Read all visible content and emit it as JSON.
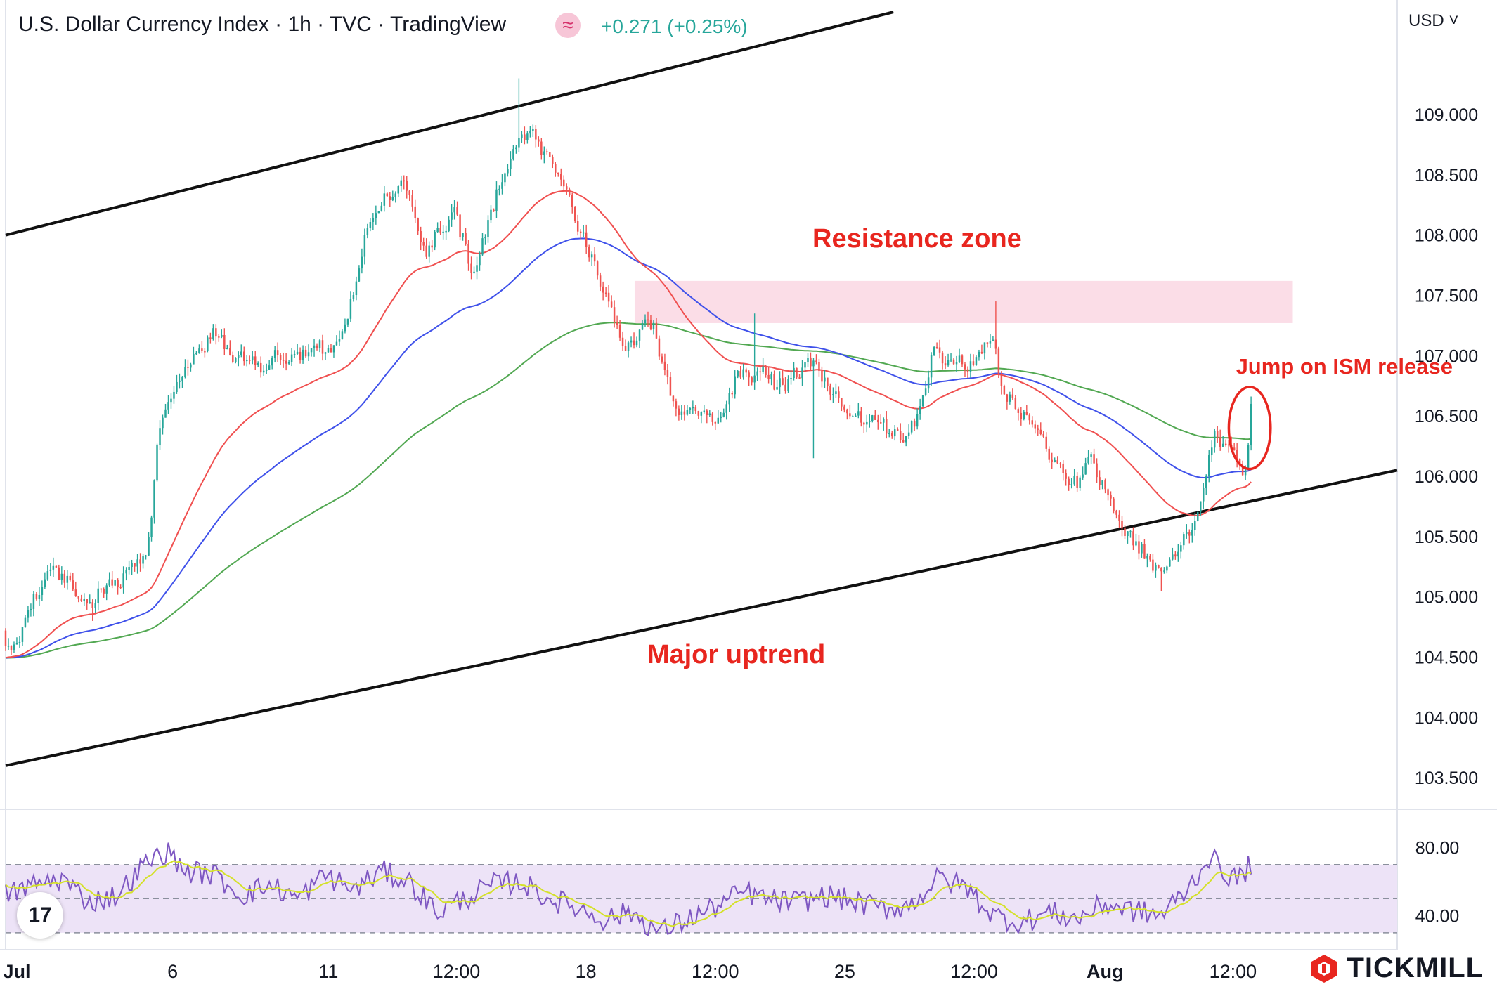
{
  "header": {
    "title": "U.S. Dollar Currency Index · 1h · TVC · TradingView",
    "symbol_badge": "≈",
    "change": "+0.271 (+0.25%)",
    "currency_selector": "USD ˅"
  },
  "brand": {
    "name": "TICKMILL"
  },
  "colors": {
    "up": "#26a69a",
    "down": "#ef5350",
    "ema_fast": "#f05050",
    "ema_mid": "#3f51ea",
    "ema_slow": "#52a852",
    "rsi": "#7e57c2",
    "rsi_ma": "#d4e12a",
    "annotation": "#e8261f",
    "resistance_zone": "#fbdde7",
    "rsi_band": "#ede3f7"
  },
  "chart_data": {
    "type": "candlestick",
    "price_axis": {
      "ticks": [
        "109.000",
        "108.500",
        "108.000",
        "107.500",
        "107.000",
        "106.500",
        "106.000",
        "105.500",
        "105.000",
        "104.500",
        "104.000",
        "103.500"
      ],
      "ylim": [
        103.25,
        109.6
      ]
    },
    "time_axis": {
      "ticks": [
        "Jul",
        "6",
        "11",
        "12:00",
        "18",
        "12:00",
        "25",
        "12:00",
        "Aug",
        "12:00"
      ],
      "xlim": [
        0,
        100
      ]
    },
    "time_ticks_pos": [
      0,
      12,
      23.2,
      32.4,
      41.7,
      51,
      60.3,
      69.6,
      79,
      88.2
    ],
    "trend_anchors": [
      {
        "t": 0,
        "p": 104.55
      },
      {
        "t": 19,
        "p": 105.35
      },
      {
        "t": 41,
        "p": 106.25
      },
      {
        "t": 51,
        "p": 106.7
      },
      {
        "t": 60,
        "p": 106.45
      },
      {
        "t": 69,
        "p": 106.6
      },
      {
        "t": 78,
        "p": 105.6
      },
      {
        "t": 83.5,
        "p": 105.3
      },
      {
        "t": 89.5,
        "p": 106.3
      }
    ],
    "trend_points": [
      {
        "t": 1,
        "p": 104.75
      },
      {
        "t": 3,
        "p": 105.3
      },
      {
        "t": 6,
        "p": 104.95
      },
      {
        "t": 8.5,
        "p": 105.2
      },
      {
        "t": 10,
        "p": 105.3
      },
      {
        "t": 11,
        "p": 106.6
      },
      {
        "t": 14.5,
        "p": 107.2
      },
      {
        "t": 18,
        "p": 106.9
      },
      {
        "t": 21,
        "p": 107.0
      },
      {
        "t": 24,
        "p": 107.1
      },
      {
        "t": 26,
        "p": 108.15
      },
      {
        "t": 28.5,
        "p": 108.45
      },
      {
        "t": 30,
        "p": 107.8
      },
      {
        "t": 32,
        "p": 108.2
      },
      {
        "t": 33.5,
        "p": 107.7
      },
      {
        "t": 35.5,
        "p": 108.45
      },
      {
        "t": 37,
        "p": 108.95
      },
      {
        "t": 39,
        "p": 108.6
      },
      {
        "t": 42,
        "p": 107.8
      },
      {
        "t": 44.5,
        "p": 107.0
      },
      {
        "t": 46,
        "p": 107.4
      },
      {
        "t": 48,
        "p": 106.55
      },
      {
        "t": 51,
        "p": 106.5
      },
      {
        "t": 53,
        "p": 106.95
      },
      {
        "t": 55.5,
        "p": 106.75
      },
      {
        "t": 58,
        "p": 106.95
      },
      {
        "t": 60,
        "p": 106.55
      },
      {
        "t": 62.5,
        "p": 106.4
      },
      {
        "t": 65,
        "p": 106.35
      },
      {
        "t": 66.5,
        "p": 107.05
      },
      {
        "t": 69,
        "p": 106.85
      },
      {
        "t": 71,
        "p": 107.2
      },
      {
        "t": 71.5,
        "p": 106.6
      },
      {
        "t": 73.5,
        "p": 106.5
      },
      {
        "t": 75,
        "p": 106.2
      },
      {
        "t": 76.5,
        "p": 105.9
      },
      {
        "t": 78,
        "p": 106.15
      },
      {
        "t": 80,
        "p": 105.6
      },
      {
        "t": 83,
        "p": 105.15
      },
      {
        "t": 85.5,
        "p": 105.65
      },
      {
        "t": 86.8,
        "p": 106.45
      },
      {
        "t": 88,
        "p": 106.15
      },
      {
        "t": 88.9,
        "p": 106.0
      },
      {
        "t": 89.5,
        "p": 106.55
      }
    ],
    "rsi": {
      "ticks": [
        "80.00",
        "40.00"
      ],
      "ylim": [
        25,
        95
      ],
      "band": [
        30,
        70
      ],
      "mid": 50,
      "anchors": [
        {
          "t": 0,
          "v": 52
        },
        {
          "t": 2,
          "v": 58
        },
        {
          "t": 4,
          "v": 62
        },
        {
          "t": 6,
          "v": 48
        },
        {
          "t": 8,
          "v": 52
        },
        {
          "t": 10,
          "v": 70
        },
        {
          "t": 11.5,
          "v": 78
        },
        {
          "t": 13,
          "v": 66
        },
        {
          "t": 15,
          "v": 64
        },
        {
          "t": 17,
          "v": 52
        },
        {
          "t": 19,
          "v": 58
        },
        {
          "t": 21,
          "v": 50
        },
        {
          "t": 23,
          "v": 64
        },
        {
          "t": 25,
          "v": 55
        },
        {
          "t": 27,
          "v": 66
        },
        {
          "t": 29,
          "v": 60
        },
        {
          "t": 31,
          "v": 42
        },
        {
          "t": 33,
          "v": 50
        },
        {
          "t": 35,
          "v": 58
        },
        {
          "t": 37,
          "v": 60
        },
        {
          "t": 39,
          "v": 50
        },
        {
          "t": 41,
          "v": 45
        },
        {
          "t": 43,
          "v": 38
        },
        {
          "t": 45,
          "v": 42
        },
        {
          "t": 47,
          "v": 30
        },
        {
          "t": 49,
          "v": 38
        },
        {
          "t": 51,
          "v": 45
        },
        {
          "t": 53,
          "v": 54
        },
        {
          "t": 55,
          "v": 49
        },
        {
          "t": 57,
          "v": 48
        },
        {
          "t": 59,
          "v": 52
        },
        {
          "t": 61,
          "v": 48
        },
        {
          "t": 63,
          "v": 44
        },
        {
          "t": 65,
          "v": 46
        },
        {
          "t": 67,
          "v": 62
        },
        {
          "t": 69,
          "v": 57
        },
        {
          "t": 71,
          "v": 40
        },
        {
          "t": 73,
          "v": 36
        },
        {
          "t": 75,
          "v": 42
        },
        {
          "t": 77,
          "v": 38
        },
        {
          "t": 79,
          "v": 47
        },
        {
          "t": 81,
          "v": 43
        },
        {
          "t": 83,
          "v": 40
        },
        {
          "t": 85,
          "v": 56
        },
        {
          "t": 86.5,
          "v": 75
        },
        {
          "t": 87.5,
          "v": 66
        },
        {
          "t": 88.5,
          "v": 61
        },
        {
          "t": 89.5,
          "v": 70
        }
      ]
    },
    "trendlines": [
      {
        "name": "upper",
        "t1": 0,
        "p1": 108.0,
        "t2": 63.8,
        "p2": 109.85
      },
      {
        "name": "lower",
        "t1": 0,
        "p1": 103.6,
        "t2": 100,
        "p2": 106.05
      }
    ],
    "zone": {
      "label": "Resistance zone",
      "t1": 45.2,
      "t2": 92.5,
      "p1": 107.27,
      "p2": 107.62
    },
    "annotations": [
      {
        "id": "resistance",
        "text": "Resistance zone",
        "t": 65.5,
        "p": 107.9
      },
      {
        "id": "uptrend",
        "text": "Major uptrend",
        "t": 52.5,
        "p": 104.45
      },
      {
        "id": "ism",
        "text": "Jump on ISM release",
        "t": 96.2,
        "p": 106.85
      }
    ],
    "ellipse": {
      "t": 89.4,
      "p": 106.4,
      "rt": 1.5,
      "rp": 0.34
    },
    "grid": true,
    "legend": "none"
  }
}
